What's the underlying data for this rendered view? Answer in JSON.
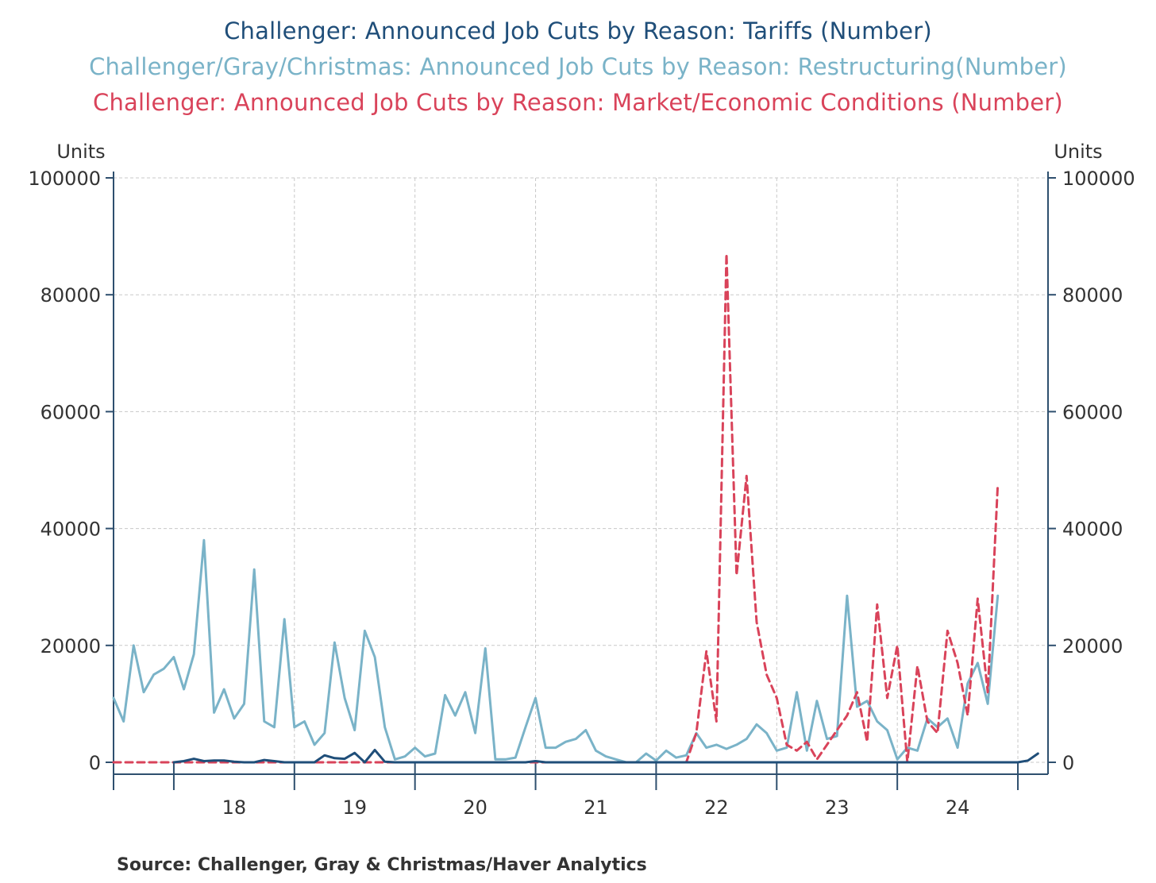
{
  "titles": [
    "Challenger: Announced Job Cuts by Reason: Tariffs (Number)",
    "Challenger/Gray/Christmas: Announced Job Cuts by Reason: Restructuring(Number)",
    "Challenger: Announced Job Cuts by Reason: Market/Economic Conditions (Number)"
  ],
  "source": "Source:  Challenger, Gray & Christmas/Haver Analytics",
  "chart_data": {
    "type": "line",
    "left_axis_label": "Units",
    "right_axis_label": "Units",
    "ylim": [
      0,
      100000
    ],
    "y_ticks": [
      0,
      20000,
      40000,
      60000,
      80000,
      100000
    ],
    "x_range": [
      "2017-07",
      "2025-04"
    ],
    "x_ticks": [
      "18",
      "19",
      "20",
      "21",
      "22",
      "23",
      "24"
    ],
    "grid": true,
    "colors": {
      "tariffs": "#1f4e79",
      "restructuring": "#7ab3c8",
      "market": "#d9435a",
      "axis": "#2e4f6e",
      "grid": "#c8c8c8"
    },
    "series": [
      {
        "name": "Challenger: Announced Job Cuts by Reason: Tariffs (Number)",
        "key": "tariffs",
        "style": "solid",
        "points": [
          [
            "2018-01",
            0
          ],
          [
            "2018-02",
            200
          ],
          [
            "2018-03",
            600
          ],
          [
            "2018-04",
            200
          ],
          [
            "2018-05",
            300
          ],
          [
            "2018-06",
            300
          ],
          [
            "2018-07",
            100
          ],
          [
            "2018-08",
            0
          ],
          [
            "2018-09",
            0
          ],
          [
            "2018-10",
            400
          ],
          [
            "2018-11",
            200
          ],
          [
            "2018-12",
            0
          ],
          [
            "2019-01",
            0
          ],
          [
            "2019-02",
            0
          ],
          [
            "2019-03",
            0
          ],
          [
            "2019-04",
            1200
          ],
          [
            "2019-05",
            700
          ],
          [
            "2019-06",
            600
          ],
          [
            "2019-07",
            1600
          ],
          [
            "2019-08",
            0
          ],
          [
            "2019-09",
            2100
          ],
          [
            "2019-10",
            100
          ],
          [
            "2019-11",
            0
          ],
          [
            "2019-12",
            0
          ],
          [
            "2020-01",
            0
          ],
          [
            "2020-06",
            0
          ],
          [
            "2020-12",
            0
          ],
          [
            "2021-01",
            200
          ],
          [
            "2021-02",
            0
          ],
          [
            "2021-06",
            0
          ],
          [
            "2021-12",
            0
          ],
          [
            "2022-06",
            0
          ],
          [
            "2022-12",
            0
          ],
          [
            "2023-06",
            0
          ],
          [
            "2023-12",
            0
          ],
          [
            "2024-06",
            0
          ],
          [
            "2024-12",
            0
          ],
          [
            "2025-01",
            0
          ],
          [
            "2025-02",
            300
          ],
          [
            "2025-03",
            1500
          ]
        ]
      },
      {
        "name": "Challenger/Gray/Christmas: Announced Job Cuts by Reason: Restructuring(Number)",
        "key": "restructuring",
        "style": "solid",
        "points": [
          [
            "2017-07",
            11000
          ],
          [
            "2017-08",
            7000
          ],
          [
            "2017-09",
            20000
          ],
          [
            "2017-10",
            12000
          ],
          [
            "2017-11",
            15000
          ],
          [
            "2017-12",
            16000
          ],
          [
            "2018-01",
            18000
          ],
          [
            "2018-02",
            12500
          ],
          [
            "2018-03",
            18500
          ],
          [
            "2018-04",
            38000
          ],
          [
            "2018-05",
            8500
          ],
          [
            "2018-06",
            12500
          ],
          [
            "2018-07",
            7500
          ],
          [
            "2018-08",
            10000
          ],
          [
            "2018-09",
            33000
          ],
          [
            "2018-10",
            7000
          ],
          [
            "2018-11",
            6000
          ],
          [
            "2018-12",
            24500
          ],
          [
            "2019-01",
            6000
          ],
          [
            "2019-02",
            7000
          ],
          [
            "2019-03",
            3000
          ],
          [
            "2019-04",
            5000
          ],
          [
            "2019-05",
            20500
          ],
          [
            "2019-06",
            11000
          ],
          [
            "2019-07",
            5500
          ],
          [
            "2019-08",
            22500
          ],
          [
            "2019-09",
            18000
          ],
          [
            "2019-10",
            6000
          ],
          [
            "2019-11",
            500
          ],
          [
            "2019-12",
            1000
          ],
          [
            "2020-01",
            2500
          ],
          [
            "2020-02",
            1000
          ],
          [
            "2020-03",
            1500
          ],
          [
            "2020-04",
            11500
          ],
          [
            "2020-05",
            8000
          ],
          [
            "2020-06",
            12000
          ],
          [
            "2020-07",
            5000
          ],
          [
            "2020-08",
            19500
          ],
          [
            "2020-09",
            500
          ],
          [
            "2020-10",
            500
          ],
          [
            "2020-11",
            800
          ],
          [
            "2020-12",
            6000
          ],
          [
            "2021-01",
            11000
          ],
          [
            "2021-02",
            2500
          ],
          [
            "2021-03",
            2500
          ],
          [
            "2021-04",
            3500
          ],
          [
            "2021-05",
            4000
          ],
          [
            "2021-06",
            5500
          ],
          [
            "2021-07",
            2000
          ],
          [
            "2021-08",
            1000
          ],
          [
            "2021-09",
            500
          ],
          [
            "2021-10",
            0
          ],
          [
            "2021-11",
            0
          ],
          [
            "2021-12",
            1500
          ],
          [
            "2022-01",
            300
          ],
          [
            "2022-02",
            2000
          ],
          [
            "2022-03",
            800
          ],
          [
            "2022-04",
            1200
          ],
          [
            "2022-05",
            5000
          ],
          [
            "2022-06",
            2500
          ],
          [
            "2022-07",
            3000
          ],
          [
            "2022-08",
            2300
          ],
          [
            "2022-09",
            3000
          ],
          [
            "2022-10",
            4000
          ],
          [
            "2022-11",
            6500
          ],
          [
            "2022-12",
            5000
          ],
          [
            "2023-01",
            2000
          ],
          [
            "2023-02",
            2500
          ],
          [
            "2023-03",
            12000
          ],
          [
            "2023-04",
            2000
          ],
          [
            "2023-05",
            10500
          ],
          [
            "2023-06",
            4000
          ],
          [
            "2023-07",
            4500
          ],
          [
            "2023-08",
            28500
          ],
          [
            "2023-09",
            9500
          ],
          [
            "2023-10",
            10500
          ],
          [
            "2023-11",
            7000
          ],
          [
            "2023-12",
            5500
          ],
          [
            "2024-01",
            500
          ],
          [
            "2024-02",
            2500
          ],
          [
            "2024-03",
            2000
          ],
          [
            "2024-04",
            7500
          ],
          [
            "2024-05",
            6000
          ],
          [
            "2024-06",
            7500
          ],
          [
            "2024-07",
            2500
          ],
          [
            "2024-08",
            13500
          ],
          [
            "2024-09",
            17000
          ],
          [
            "2024-10",
            10000
          ],
          [
            "2024-11",
            28500
          ]
        ]
      },
      {
        "name": "Challenger: Announced Job Cuts by Reason: Market/Economic Conditions (Number)",
        "key": "market",
        "style": "dashed",
        "points": [
          [
            "2017-07",
            0
          ],
          [
            "2018-06",
            0
          ],
          [
            "2019-06",
            0
          ],
          [
            "2020-06",
            0
          ],
          [
            "2021-06",
            0
          ],
          [
            "2022-03",
            0
          ],
          [
            "2022-04",
            0
          ],
          [
            "2022-05",
            5000
          ],
          [
            "2022-06",
            19000
          ],
          [
            "2022-07",
            7000
          ],
          [
            "2022-08",
            87000
          ],
          [
            "2022-09",
            32000
          ],
          [
            "2022-10",
            49000
          ],
          [
            "2022-11",
            24000
          ],
          [
            "2022-12",
            15000
          ],
          [
            "2023-01",
            11000
          ],
          [
            "2023-02",
            3000
          ],
          [
            "2023-03",
            2000
          ],
          [
            "2023-04",
            3500
          ],
          [
            "2023-05",
            500
          ],
          [
            "2023-06",
            3000
          ],
          [
            "2023-07",
            5500
          ],
          [
            "2023-08",
            8000
          ],
          [
            "2023-09",
            12000
          ],
          [
            "2023-10",
            3500
          ],
          [
            "2023-11",
            27000
          ],
          [
            "2023-12",
            11000
          ],
          [
            "2024-01",
            20000
          ],
          [
            "2024-02",
            0
          ],
          [
            "2024-03",
            16500
          ],
          [
            "2024-04",
            7000
          ],
          [
            "2024-05",
            5000
          ],
          [
            "2024-06",
            22500
          ],
          [
            "2024-07",
            17000
          ],
          [
            "2024-08",
            8000
          ],
          [
            "2024-09",
            28000
          ],
          [
            "2024-10",
            12000
          ],
          [
            "2024-11",
            47500
          ]
        ]
      }
    ]
  }
}
